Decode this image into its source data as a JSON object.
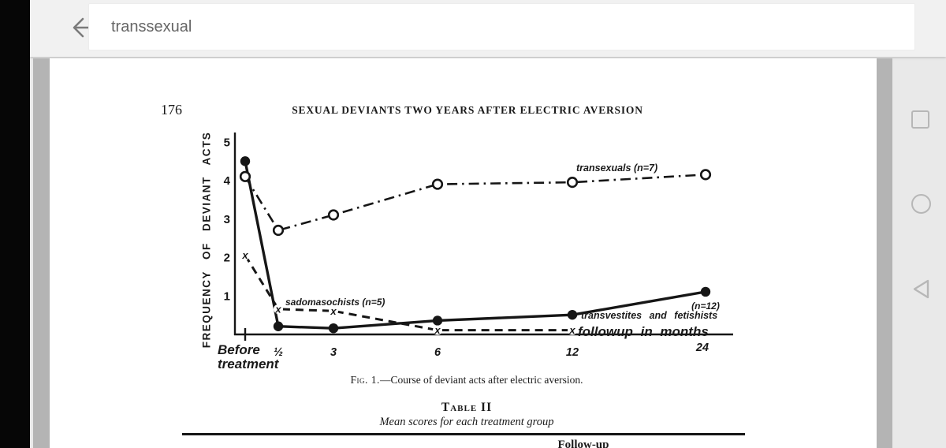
{
  "browser": {
    "search": {
      "value": "transsexual"
    },
    "back_icon": "arrow-left",
    "nav_icons": {
      "recents": "square-outline",
      "home": "circle-outline",
      "back": "triangle-left-outline"
    }
  },
  "document": {
    "page_number": "176",
    "running_head": "SEXUAL DEVIANTS TWO YEARS AFTER ELECTRIC AVERSION",
    "figure_caption": {
      "prefix": "Fig. 1.",
      "rest": "—Course of deviant acts after electric aversion."
    },
    "table": {
      "title": "Table II",
      "subtitle": "Mean scores for each treatment group",
      "partial_column_header": "Follow-up"
    }
  },
  "chart_data": {
    "type": "line",
    "title": "",
    "ylabel": "FREQUENCY OF DEVIANT ACTS",
    "x_axis_annotation": "followup in months",
    "categories": [
      "Before treatment",
      "½",
      "3",
      "6",
      "12",
      "24"
    ],
    "x_tick_labels": [
      "½",
      "3",
      "6",
      "12",
      "24"
    ],
    "first_category_label_lines": [
      "Before",
      "treatment"
    ],
    "ylim": [
      0,
      5
    ],
    "yticks": [
      1,
      2,
      3,
      4,
      5
    ],
    "grid": false,
    "ink_color": "#161616",
    "series": [
      {
        "name": "transexuals",
        "label": "transexuals (n=7)",
        "n": 7,
        "line_style": "dash-dot",
        "marker": "open-circle",
        "values": [
          4.1,
          2.7,
          3.1,
          3.9,
          3.95,
          4.15
        ]
      },
      {
        "name": "sadomasochists",
        "label": "sadomasochists (n=5)",
        "n": 5,
        "line_style": "dashed",
        "marker": "x",
        "values": [
          2.05,
          0.65,
          0.6,
          0.1,
          0.1,
          null
        ]
      },
      {
        "name": "transvestites-and-fetishists",
        "label": "transvestites and fetishists",
        "label_n": "(n=12)",
        "n": 12,
        "line_style": "solid",
        "marker": "filled-circle",
        "values": [
          4.5,
          0.2,
          0.15,
          0.35,
          0.5,
          1.1
        ]
      }
    ]
  }
}
